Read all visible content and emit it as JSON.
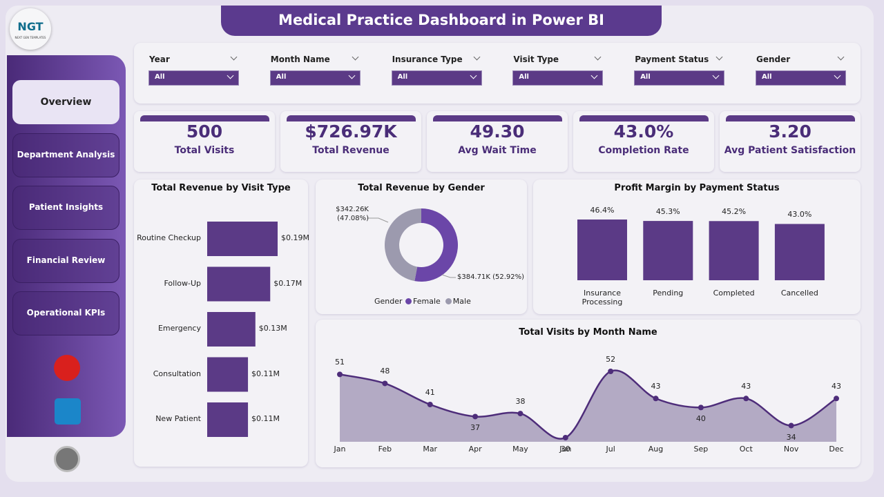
{
  "header": {
    "title": "Medical Practice Dashboard in Power BI",
    "logo": "NGT",
    "logo_subtitle": "NEXT GEN TEMPLATES"
  },
  "nav": [
    "Overview",
    "Department Analysis",
    "Patient Insights",
    "Financial Review",
    "Operational KPIs"
  ],
  "filters": [
    {
      "label": "Year",
      "value": "All"
    },
    {
      "label": "Month Name",
      "value": "All"
    },
    {
      "label": "Insurance Type",
      "value": "All"
    },
    {
      "label": "Visit Type",
      "value": "All"
    },
    {
      "label": "Payment Status",
      "value": "All"
    },
    {
      "label": "Gender",
      "value": "All"
    }
  ],
  "kpis": [
    {
      "value": "500",
      "label": "Total Visits"
    },
    {
      "value": "$726.97K",
      "label": "Total Revenue"
    },
    {
      "value": "49.30",
      "label": "Avg Wait Time"
    },
    {
      "value": "43.0%",
      "label": "Completion Rate"
    },
    {
      "value": "3.20",
      "label": "Avg Patient Satisfaction"
    }
  ],
  "chart_data": [
    {
      "type": "hbar",
      "title": "Total Revenue by Visit Type",
      "categories": [
        "Routine Checkup",
        "Follow-Up",
        "Emergency",
        "Consultation",
        "New Patient"
      ],
      "values": [
        0.19,
        0.17,
        0.13,
        0.11,
        0.11
      ],
      "value_labels": [
        "$0.19M",
        "$0.17M",
        "$0.13M",
        "$0.11M",
        "$0.11M"
      ],
      "color": "#5b3a86"
    },
    {
      "type": "donut",
      "title": "Total Revenue by Gender",
      "legend_title": "Gender",
      "categories": [
        "Female",
        "Male"
      ],
      "values": [
        384.71,
        342.26
      ],
      "value_labels": [
        "$384.71K (52.92%)",
        "$342.26K (47.08%)"
      ],
      "colors": [
        "#6b46a8",
        "#9c9aae"
      ]
    },
    {
      "type": "bar",
      "title": "Profit Margin by Payment Status",
      "categories": [
        "Insurance Processing",
        "Pending",
        "Completed",
        "Cancelled"
      ],
      "values": [
        46.4,
        45.3,
        45.2,
        43.0
      ],
      "value_labels": [
        "46.4%",
        "45.3%",
        "45.2%",
        "43.0%"
      ],
      "color": "#5b3a86"
    },
    {
      "type": "area",
      "title": "Total Visits by Month Name",
      "categories": [
        "Jan",
        "Feb",
        "Mar",
        "Apr",
        "May",
        "Jun",
        "Jul",
        "Aug",
        "Sep",
        "Oct",
        "Nov",
        "Dec"
      ],
      "values": [
        51,
        48,
        41,
        37,
        38,
        30,
        52,
        43,
        40,
        43,
        34,
        43
      ],
      "color": "#4e2d7a",
      "fill": "#b3aac4"
    }
  ]
}
